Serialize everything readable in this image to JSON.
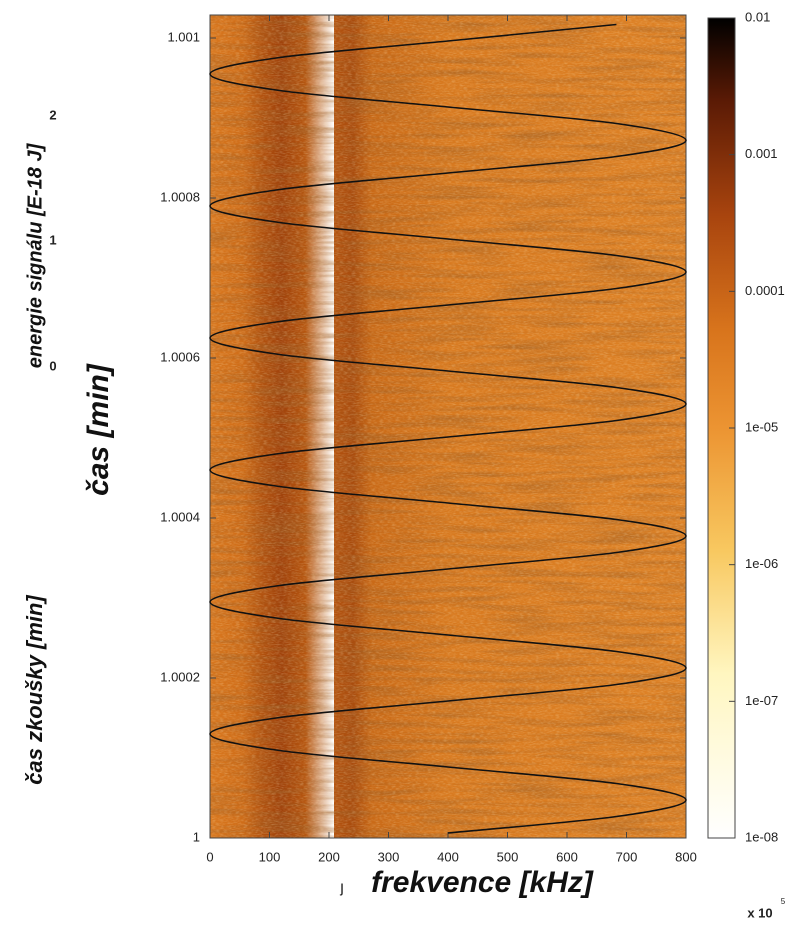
{
  "chart_data": {
    "type": "line",
    "xlabel": "frekvence [kHz]",
    "ylabel": "čas [min]",
    "annotations": [
      "energie signálu [E-18 J]",
      "2",
      "1",
      "0",
      "čas zkoušky [min]",
      "ȷ",
      "x 10",
      "5"
    ],
    "xlim": [
      0,
      800
    ],
    "xticks": [
      0,
      100,
      200,
      300,
      400,
      500,
      600,
      700,
      800
    ],
    "ylim": [
      1,
      1.00102875
    ],
    "yticks": [
      1,
      1.0002,
      1.0004,
      1.0006,
      1.0008,
      1.001
    ],
    "colorbar": {
      "log": true,
      "lim": [
        1e-08,
        0.01
      ],
      "ticks": [
        {
          "value": 1e-08,
          "label": "1e-08"
        },
        {
          "value": 1e-07,
          "label": "1e-07"
        },
        {
          "value": 1e-06,
          "label": "1e-06"
        },
        {
          "value": 1e-05,
          "label": "1e-05"
        },
        0.0001,
        0.001,
        0.01
      ]
    },
    "x": [
      400,
      683,
      800,
      683,
      400,
      117,
      0,
      117,
      400,
      683,
      800,
      683,
      400,
      117,
      0,
      117,
      400,
      683,
      800,
      683,
      400,
      117,
      0,
      117,
      400,
      683,
      800,
      683,
      400,
      117,
      0,
      117,
      400,
      683,
      800,
      683,
      400,
      117,
      0,
      117,
      400,
      683,
      800,
      683,
      400,
      117,
      0,
      117,
      400,
      683
    ],
    "series": [
      {
        "color": "#111111",
        "values": [
          1.00000625,
          1.000026875,
          1.0000475,
          1.000068125,
          1.00008875,
          1.000109375,
          1.00013,
          1.000150625,
          1.00017125,
          1.000191875,
          1.0002125,
          1.000233125,
          1.00025375,
          1.000274375,
          1.000295,
          1.000315625,
          1.00033625,
          1.000356875,
          1.0003775,
          1.000398125,
          1.00041875,
          1.000439375,
          1.00046,
          1.000480625,
          1.00050125,
          1.000521875,
          1.0005425,
          1.000563125,
          1.00058375,
          1.000604375,
          1.000625,
          1.000645625,
          1.00066625,
          1.000686875,
          1.0007075,
          1.000728125,
          1.00074875,
          1.000769375,
          1.00079,
          1.000810625,
          1.00083125,
          1.000851875,
          1.000872,
          1.000893125,
          1.00091375,
          1.000934375,
          1.000955,
          1.000975625,
          1.00099625,
          1.001016875
        ]
      }
    ]
  }
}
